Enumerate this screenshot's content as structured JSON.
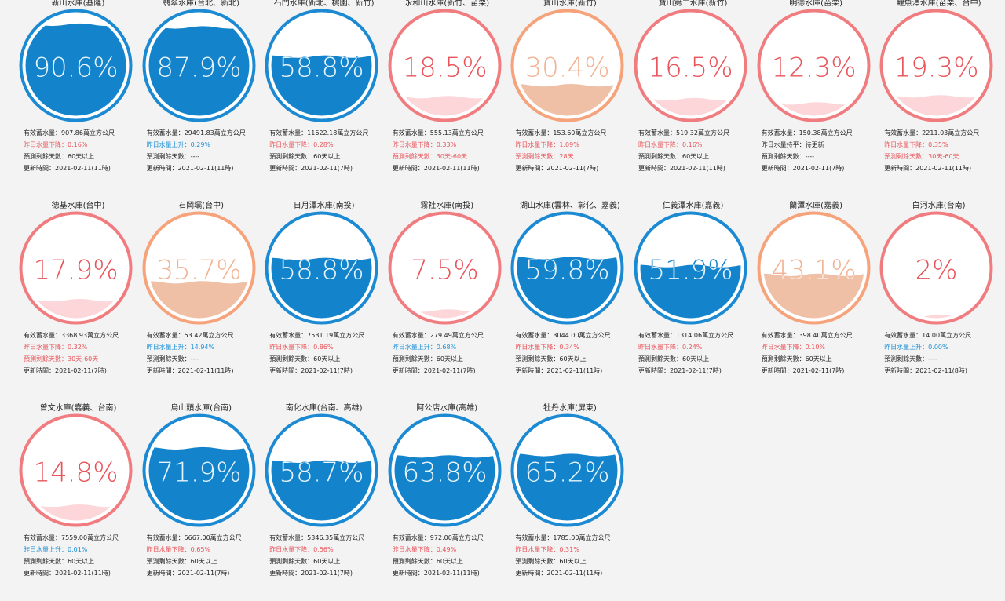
{
  "labels": {
    "storage_prefix": "有效蓄水量：",
    "storage_unit": "萬立方公尺",
    "days_prefix": "預測剩餘天數：",
    "time_prefix": "更新時間："
  },
  "colors": {
    "blue": "#1384cb",
    "blue_ring": "#1b8ad2",
    "orange_ring": "#f6a37b",
    "orange_fill": "#efbfa6",
    "red_ring": "#f07c80",
    "red_fill": "#fcd6d8",
    "red_text": "#e8545a",
    "blue_text": "#1b8fd6"
  },
  "reservoirs": [
    {
      "name": "新山水庫(基隆)",
      "pct_text": "90.6%",
      "pct": 0.906,
      "level": "blue",
      "storage": "907.86",
      "change": "昨日水量下降：0.16%",
      "change_dir": "down",
      "days": "60天以上",
      "days_warn": false,
      "time": "2021-02-11(11時)"
    },
    {
      "name": "翡翠水庫(台北、新北)",
      "pct_text": "87.9%",
      "pct": 0.879,
      "level": "blue",
      "storage": "29491.83",
      "change": "昨日水量上升：0.29%",
      "change_dir": "up",
      "days": "----",
      "days_warn": false,
      "time": "2021-02-11(11時)"
    },
    {
      "name": "石門水庫(新北、桃園、新竹)",
      "pct_text": "58.8%",
      "pct": 0.588,
      "level": "blue",
      "storage": "11622.18",
      "change": "昨日水量下降：0.28%",
      "change_dir": "down",
      "days": "60天以上",
      "days_warn": false,
      "time": "2021-02-11(7時)"
    },
    {
      "name": "永和山水庫(新竹、苗栗)",
      "pct_text": "18.5%",
      "pct": 0.185,
      "level": "red",
      "storage": "555.13",
      "change": "昨日水量下降：0.33%",
      "change_dir": "down",
      "days": "30天-60天",
      "days_warn": true,
      "time": "2021-02-11(11時)"
    },
    {
      "name": "寶山水庫(新竹)",
      "pct_text": "30.4%",
      "pct": 0.304,
      "level": "orange",
      "storage": "153.60",
      "change": "昨日水量下降：1.09%",
      "change_dir": "down",
      "days": "28天",
      "days_warn": true,
      "time": "2021-02-11(7時)"
    },
    {
      "name": "寶山第二水庫(新竹)",
      "pct_text": "16.5%",
      "pct": 0.165,
      "level": "red",
      "storage": "519.32",
      "change": "昨日水量下降：0.16%",
      "change_dir": "down",
      "days": "60天以上",
      "days_warn": false,
      "time": "2021-02-11(11時)"
    },
    {
      "name": "明德水庫(苗栗)",
      "pct_text": "12.3%",
      "pct": 0.123,
      "level": "red",
      "storage": "150.38",
      "change": "昨日水量持平：待更新",
      "change_dir": "flat",
      "days": "----",
      "days_warn": false,
      "time": "2021-02-11(7時)"
    },
    {
      "name": "鯉魚潭水庫(苗栗、台中)",
      "pct_text": "19.3%",
      "pct": 0.193,
      "level": "red",
      "storage": "2211.03",
      "change": "昨日水量下降：0.35%",
      "change_dir": "down",
      "days": "30天-60天",
      "days_warn": true,
      "time": "2021-02-11(11時)"
    },
    {
      "name": "德基水庫(台中)",
      "pct_text": "17.9%",
      "pct": 0.179,
      "level": "red",
      "storage": "3368.93",
      "change": "昨日水量下降：0.32%",
      "change_dir": "down",
      "days": "30天-60天",
      "days_warn": true,
      "time": "2021-02-11(7時)"
    },
    {
      "name": "石岡壩(台中)",
      "pct_text": "35.7%",
      "pct": 0.357,
      "level": "orange",
      "storage": "53.42",
      "change": "昨日水量上升：14.94%",
      "change_dir": "up",
      "days": "----",
      "days_warn": false,
      "time": "2021-02-11(11時)"
    },
    {
      "name": "日月潭水庫(南投)",
      "pct_text": "58.8%",
      "pct": 0.588,
      "level": "blue",
      "storage": "7531.19",
      "change": "昨日水量下降：0.86%",
      "change_dir": "down",
      "days": "60天以上",
      "days_warn": false,
      "time": "2021-02-11(7時)"
    },
    {
      "name": "霧社水庫(南投)",
      "pct_text": "7.5%",
      "pct": 0.075,
      "level": "red",
      "storage": "279.49",
      "change": "昨日水量上升：0.68%",
      "change_dir": "up",
      "days": "60天以上",
      "days_warn": false,
      "time": "2021-02-11(7時)"
    },
    {
      "name": "湖山水庫(雲林、彰化、嘉義)",
      "pct_text": "59.8%",
      "pct": 0.598,
      "level": "blue",
      "storage": "3044.00",
      "change": "昨日水量下降：0.34%",
      "change_dir": "down",
      "days": "60天以上",
      "days_warn": false,
      "time": "2021-02-11(11時)"
    },
    {
      "name": "仁義潭水庫(嘉義)",
      "pct_text": "51.9%",
      "pct": 0.519,
      "level": "blue",
      "storage": "1314.06",
      "change": "昨日水量下降：0.24%",
      "change_dir": "down",
      "days": "60天以上",
      "days_warn": false,
      "time": "2021-02-11(7時)"
    },
    {
      "name": "蘭潭水庫(嘉義)",
      "pct_text": "43.1%",
      "pct": 0.431,
      "level": "orange",
      "storage": "398.40",
      "change": "昨日水量下降：0.10%",
      "change_dir": "down",
      "days": "60天以上",
      "days_warn": false,
      "time": "2021-02-11(7時)"
    },
    {
      "name": "白河水庫(台南)",
      "pct_text": "2%",
      "pct": 0.02,
      "level": "red",
      "storage": "14.00",
      "change": "昨日水量上升：0.00%",
      "change_dir": "up",
      "days": "----",
      "days_warn": false,
      "time": "2021-02-11(8時)"
    },
    {
      "name": "曾文水庫(嘉義、台南)",
      "pct_text": "14.8%",
      "pct": 0.148,
      "level": "red",
      "storage": "7559.00",
      "change": "昨日水量上升：0.01%",
      "change_dir": "up",
      "days": "60天以上",
      "days_warn": false,
      "time": "2021-02-11(11時)"
    },
    {
      "name": "烏山頭水庫(台南)",
      "pct_text": "71.9%",
      "pct": 0.719,
      "level": "blue",
      "storage": "5667.00",
      "change": "昨日水量下降：0.65%",
      "change_dir": "down",
      "days": "60天以上",
      "days_warn": false,
      "time": "2021-02-11(7時)"
    },
    {
      "name": "南化水庫(台南、高雄)",
      "pct_text": "58.7%",
      "pct": 0.587,
      "level": "blue",
      "storage": "5346.35",
      "change": "昨日水量下降：0.56%",
      "change_dir": "down",
      "days": "60天以上",
      "days_warn": false,
      "time": "2021-02-11(7時)"
    },
    {
      "name": "阿公店水庫(高雄)",
      "pct_text": "63.8%",
      "pct": 0.638,
      "level": "blue",
      "storage": "972.00",
      "change": "昨日水量下降：0.49%",
      "change_dir": "down",
      "days": "60天以上",
      "days_warn": false,
      "time": "2021-02-11(11時)"
    },
    {
      "name": "牡丹水庫(屏東)",
      "pct_text": "65.2%",
      "pct": 0.652,
      "level": "blue",
      "storage": "1785.00",
      "change": "昨日水量下降：0.31%",
      "change_dir": "down",
      "days": "60天以上",
      "days_warn": false,
      "time": "2021-02-11(11時)"
    }
  ]
}
